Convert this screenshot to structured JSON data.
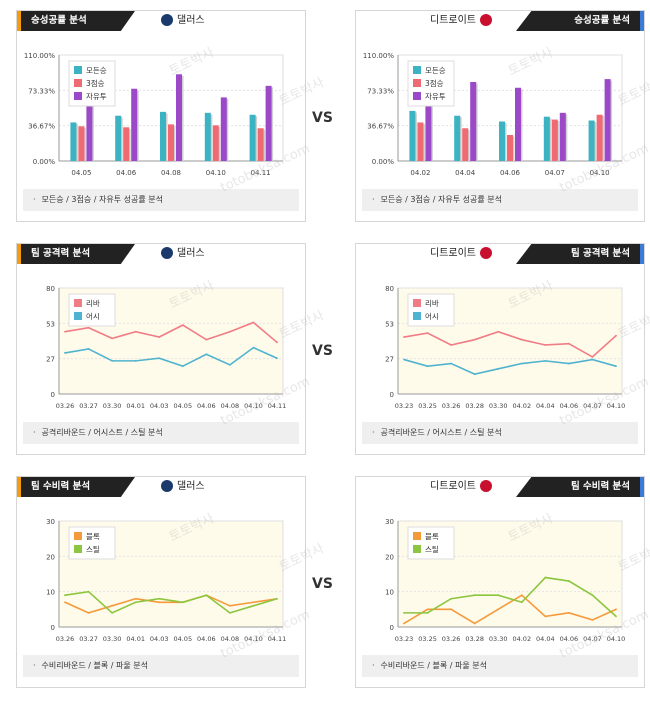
{
  "vs_label": "VS",
  "footer_bullet": "·",
  "watermark": {
    "line1": "토토박사",
    "line2": "totobaksa.com"
  },
  "colors": {
    "tab_bg": "#222222",
    "left_accent": "#f39c12",
    "right_accent": "#3a7bd5",
    "dallas_logo": "#1b3a6b",
    "detroit_logo": "#c8102e"
  },
  "panels": [
    {
      "team": "댈러스",
      "title": "승성공률 분석",
      "side": "left",
      "footer": "모든승 / 3점승 / 자유투 성공률 분석",
      "chart_data": {
        "type": "bar",
        "categories": [
          "04.05",
          "04.06",
          "04.08",
          "04.10",
          "04.11"
        ],
        "yticks": [
          "110.00%",
          "73.33%",
          "36.67%",
          "0.00%"
        ],
        "ylim": [
          0,
          110
        ],
        "series": [
          {
            "name": "모든승",
            "color": "#3bb3c3",
            "values": [
              40,
              47,
              51,
              50,
              48
            ]
          },
          {
            "name": "3점승",
            "color": "#ef6b73",
            "values": [
              36,
              35,
              38,
              37,
              34
            ]
          },
          {
            "name": "자유투",
            "color": "#9b49c8",
            "values": [
              80,
              75,
              90,
              66,
              78
            ]
          }
        ]
      }
    },
    {
      "team": "디트로이트",
      "title": "승성공률 분석",
      "side": "right",
      "footer": "모든승 / 3점승 / 자유투 성공률 분석",
      "chart_data": {
        "type": "bar",
        "categories": [
          "04.02",
          "04.04",
          "04.06",
          "04.07",
          "04.10"
        ],
        "yticks": [
          "110.00%",
          "73.33%",
          "36.67%",
          "0.00%"
        ],
        "ylim": [
          0,
          110
        ],
        "series": [
          {
            "name": "모든승",
            "color": "#3bb3c3",
            "values": [
              52,
              47,
              41,
              46,
              42
            ]
          },
          {
            "name": "3점승",
            "color": "#ef6b73",
            "values": [
              40,
              34,
              27,
              43,
              48
            ]
          },
          {
            "name": "자유투",
            "color": "#9b49c8",
            "values": [
              83,
              82,
              76,
              50,
              85
            ]
          }
        ]
      }
    },
    {
      "team": "댈러스",
      "title": "팀 공격력 분석",
      "side": "left",
      "footer": "공격리바운드 / 어시스트 / 스틸 분석",
      "chart_data": {
        "type": "line",
        "x": [
          "03.26",
          "03.27",
          "03.30",
          "04.01",
          "04.03",
          "04.05",
          "04.06",
          "04.08",
          "04.10",
          "04.11"
        ],
        "yticks": [
          "80",
          "53",
          "27",
          "0"
        ],
        "ylim": [
          0,
          80
        ],
        "series": [
          {
            "name": "리바",
            "color": "#f07c86",
            "values": [
              47,
              50,
              42,
              47,
              43,
              52,
              41,
              47,
              54,
              39
            ]
          },
          {
            "name": "어시",
            "color": "#4fb3cf",
            "values": [
              31,
              34,
              25,
              25,
              27,
              21,
              30,
              22,
              35,
              27
            ]
          }
        ]
      }
    },
    {
      "team": "디트로이트",
      "title": "팀 공격력 분석",
      "side": "right",
      "footer": "공격리바운드 / 어시스트 / 스틸 분석",
      "chart_data": {
        "type": "line",
        "x": [
          "03.23",
          "03.25",
          "03.26",
          "03.28",
          "03.30",
          "04.02",
          "04.04",
          "04.06",
          "04.07",
          "04.10"
        ],
        "yticks": [
          "80",
          "53",
          "27",
          "0"
        ],
        "ylim": [
          0,
          80
        ],
        "series": [
          {
            "name": "리바",
            "color": "#f07c86",
            "values": [
              43,
              46,
              37,
              41,
              47,
              41,
              37,
              38,
              28,
              44
            ]
          },
          {
            "name": "어시",
            "color": "#4fb3cf",
            "values": [
              26,
              21,
              23,
              15,
              19,
              23,
              25,
              23,
              26,
              21
            ]
          }
        ]
      }
    },
    {
      "team": "댈러스",
      "title": "팀 수비력 분석",
      "side": "left",
      "footer": "수비리바운드 / 블록 / 파울 분석",
      "chart_data": {
        "type": "line",
        "x": [
          "03.26",
          "03.27",
          "03.30",
          "04.01",
          "04.03",
          "04.05",
          "04.06",
          "04.08",
          "04.10",
          "04.11"
        ],
        "yticks": [
          "30",
          "20",
          "10",
          "0"
        ],
        "ylim": [
          0,
          30
        ],
        "series": [
          {
            "name": "블록",
            "color": "#f59a3b",
            "values": [
              7,
              4,
              6,
              8,
              7,
              7,
              9,
              6,
              7,
              8
            ]
          },
          {
            "name": "스틸",
            "color": "#8cc63f",
            "values": [
              9,
              10,
              4,
              7,
              8,
              7,
              9,
              4,
              6,
              8
            ]
          }
        ]
      }
    },
    {
      "team": "디트로이트",
      "title": "팀 수비력 분석",
      "side": "right",
      "footer": "수비리바운드 / 블록 / 파울 분석",
      "chart_data": {
        "type": "line",
        "x": [
          "03.23",
          "03.25",
          "03.26",
          "03.28",
          "03.30",
          "04.02",
          "04.04",
          "04.06",
          "04.07",
          "04.10"
        ],
        "yticks": [
          "30",
          "20",
          "10",
          "0"
        ],
        "ylim": [
          0,
          30
        ],
        "series": [
          {
            "name": "블록",
            "color": "#f59a3b",
            "values": [
              1,
              5,
              5,
              1,
              5,
              9,
              3,
              4,
              2,
              5
            ]
          },
          {
            "name": "스틸",
            "color": "#8cc63f",
            "values": [
              4,
              4,
              8,
              9,
              9,
              7,
              14,
              13,
              9,
              3
            ]
          }
        ]
      }
    }
  ]
}
